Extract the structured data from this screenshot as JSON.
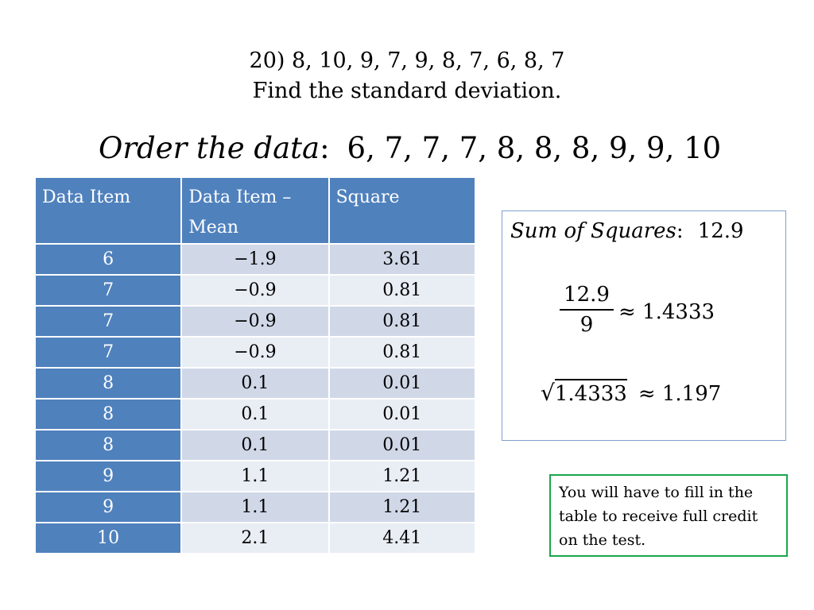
{
  "title": {
    "line1": "20) 8, 10, 9, 7, 9, 8, 7, 6, 8, 7",
    "line2": "Find the standard deviation."
  },
  "order": {
    "label": "Order the data",
    "colon": ":",
    "values": "6, 7, 7, 7, 8, 8, 8, 9, 9, 10"
  },
  "table": {
    "headers": [
      "Data Item",
      "Data Item – Mean",
      "Square"
    ],
    "rows": [
      [
        "6",
        "−1.9",
        "3.61"
      ],
      [
        "7",
        "−0.9",
        "0.81"
      ],
      [
        "7",
        "−0.9",
        "0.81"
      ],
      [
        "7",
        "−0.9",
        "0.81"
      ],
      [
        "8",
        "0.1",
        "0.01"
      ],
      [
        "8",
        "0.1",
        "0.01"
      ],
      [
        "8",
        "0.1",
        "0.01"
      ],
      [
        "9",
        "1.1",
        "1.21"
      ],
      [
        "9",
        "1.1",
        "1.21"
      ],
      [
        "10",
        "2.1",
        "4.41"
      ]
    ]
  },
  "sum_box": {
    "label": "Sum of Squares",
    "colon": ":",
    "value": "12.9",
    "fraction_num": "12.9",
    "fraction_den": "9",
    "approx_variance": "≈ 1.4333",
    "radical": "√",
    "radicand": "1.4333",
    "approx_sd": "≈ 1.197"
  },
  "note": {
    "text": "You will have to fill in the table to receive full credit on the test."
  }
}
